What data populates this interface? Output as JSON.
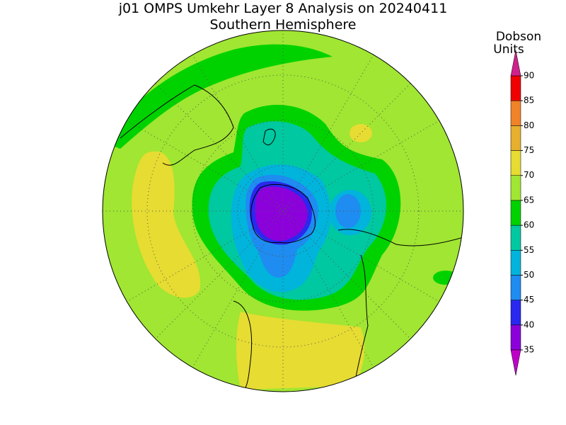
{
  "title": "j01 OMPS Umkehr Layer 8 Analysis on 20240411",
  "subtitle": "Southern Hemisphere",
  "colorbar": {
    "label_lines": [
      "Dobson",
      "Units"
    ],
    "ticks": [
      35,
      40,
      45,
      50,
      55,
      60,
      65,
      70,
      75,
      80,
      85,
      90
    ],
    "colors": [
      "#8c00dc",
      "#2828f0",
      "#1e8cf0",
      "#00b4dc",
      "#00c8a0",
      "#00d200",
      "#a0e632",
      "#e6dc32",
      "#e6af2d",
      "#f08228",
      "#f00000"
    ],
    "under_color": "#c000c8",
    "over_color": "#d0208c"
  }
}
